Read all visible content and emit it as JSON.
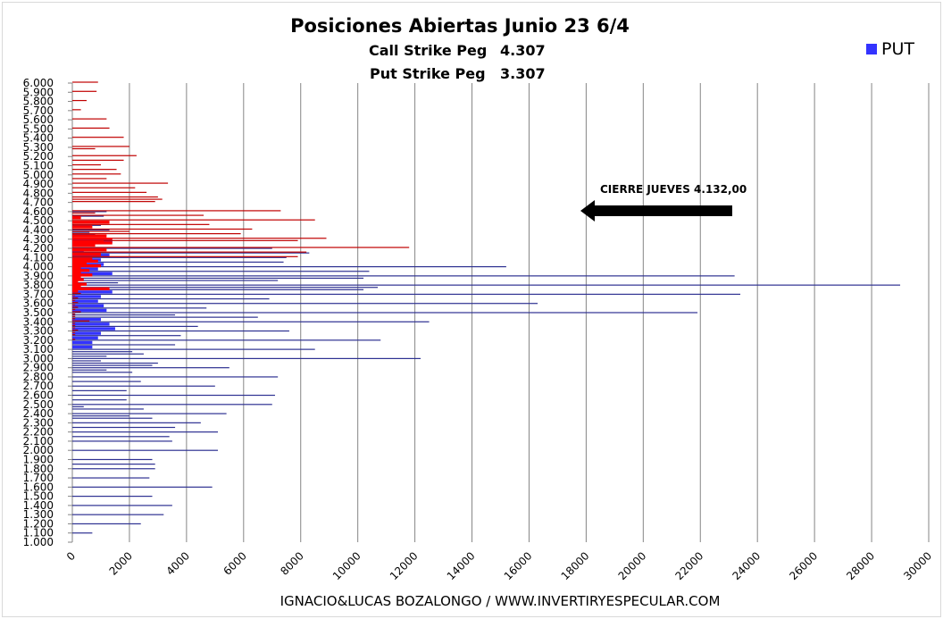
{
  "chart_data": {
    "type": "bar",
    "orientation": "horizontal",
    "title": "Posiciones Abiertas Junio 23 6/4",
    "subtitle_lines": [
      {
        "label": "Call Strike Peg",
        "value": "4.307"
      },
      {
        "label": "Put Strike Peg",
        "value": "3.307"
      }
    ],
    "legend": [
      {
        "name": "PUT",
        "color": "#3333ff"
      }
    ],
    "legend_position": "top-right",
    "xlim": [
      0,
      30000
    ],
    "x_ticks": [
      "0",
      "2000",
      "4000",
      "6000",
      "8000",
      "10000",
      "12000",
      "14000",
      "16000",
      "18000",
      "20000",
      "22000",
      "24000",
      "26000",
      "28000",
      "30000"
    ],
    "ylim": [
      1000,
      6000
    ],
    "y_ticks": [
      "6.000",
      "5.900",
      "5.800",
      "5.700",
      "5.600",
      "5.500",
      "5.400",
      "5.300",
      "5.200",
      "5.100",
      "5.000",
      "4.900",
      "4.800",
      "4.700",
      "4.600",
      "4.500",
      "4.400",
      "4.300",
      "4.200",
      "4.100",
      "4.000",
      "3.900",
      "3.800",
      "3.700",
      "3.600",
      "3.500",
      "3.400",
      "3.300",
      "3.200",
      "3.100",
      "3.000",
      "2.900",
      "2.800",
      "2.700",
      "2.600",
      "2.500",
      "2.400",
      "2.300",
      "2.200",
      "2.100",
      "2.000",
      "1.900",
      "1.800",
      "1.700",
      "1.600",
      "1.500",
      "1.400",
      "1.300",
      "1.200",
      "1.100",
      "1.000"
    ],
    "grid": true,
    "series_columns": [
      "strike",
      "call",
      "put"
    ],
    "colors": {
      "call": "#c00000",
      "put": "#2e3192",
      "call_near": "#ff0000",
      "put_near": "#3333ff"
    },
    "rows": [
      [
        6000,
        900,
        0
      ],
      [
        5900,
        850,
        0
      ],
      [
        5800,
        500,
        0
      ],
      [
        5700,
        300,
        0
      ],
      [
        5600,
        1200,
        0
      ],
      [
        5500,
        1300,
        0
      ],
      [
        5400,
        1800,
        0
      ],
      [
        5300,
        2000,
        0
      ],
      [
        5275,
        800,
        0
      ],
      [
        5200,
        2250,
        0
      ],
      [
        5150,
        1800,
        0
      ],
      [
        5100,
        1000,
        0
      ],
      [
        5050,
        1550,
        0
      ],
      [
        5000,
        1700,
        0
      ],
      [
        4950,
        1200,
        0
      ],
      [
        4900,
        3350,
        0
      ],
      [
        4850,
        2200,
        0
      ],
      [
        4800,
        2600,
        0
      ],
      [
        4750,
        3000,
        0
      ],
      [
        4725,
        3150,
        0
      ],
      [
        4700,
        2900,
        0
      ],
      [
        4600,
        7300,
        1200
      ],
      [
        4575,
        800,
        0
      ],
      [
        4550,
        4600,
        1100
      ],
      [
        4525,
        300,
        0
      ],
      [
        4500,
        8500,
        0
      ],
      [
        4475,
        1300,
        0
      ],
      [
        4450,
        4800,
        1000
      ],
      [
        4425,
        700,
        0
      ],
      [
        4400,
        6300,
        1300
      ],
      [
        4375,
        2000,
        600
      ],
      [
        4350,
        5900,
        800
      ],
      [
        4325,
        1200,
        0
      ],
      [
        4300,
        8900,
        1000
      ],
      [
        4290,
        1400,
        0
      ],
      [
        4275,
        7900,
        1400
      ],
      [
        4260,
        1100,
        0
      ],
      [
        4250,
        1400,
        700
      ],
      [
        4225,
        800,
        0
      ],
      [
        4200,
        11800,
        7000
      ],
      [
        4175,
        1200,
        400
      ],
      [
        4150,
        8200,
        8300
      ],
      [
        4125,
        1000,
        1300
      ],
      [
        4100,
        7900,
        7500
      ],
      [
        4075,
        700,
        1000
      ],
      [
        4050,
        900,
        7400
      ],
      [
        4025,
        500,
        1100
      ],
      [
        4000,
        1000,
        15200
      ],
      [
        3975,
        300,
        900
      ],
      [
        3950,
        600,
        10400
      ],
      [
        3925,
        300,
        1400
      ],
      [
        3900,
        700,
        23200
      ],
      [
        3875,
        300,
        10200
      ],
      [
        3850,
        400,
        7200
      ],
      [
        3825,
        200,
        1600
      ],
      [
        3800,
        500,
        29000
      ],
      [
        3775,
        300,
        10700
      ],
      [
        3750,
        1300,
        10200
      ],
      [
        3725,
        200,
        1400
      ],
      [
        3700,
        300,
        23400
      ],
      [
        3675,
        100,
        1000
      ],
      [
        3650,
        200,
        6900
      ],
      [
        3625,
        100,
        900
      ],
      [
        3600,
        200,
        16300
      ],
      [
        3575,
        100,
        1100
      ],
      [
        3550,
        200,
        4700
      ],
      [
        3525,
        100,
        1200
      ],
      [
        3500,
        300,
        21900
      ],
      [
        3475,
        100,
        3600
      ],
      [
        3450,
        100,
        6500
      ],
      [
        3425,
        100,
        1000
      ],
      [
        3400,
        600,
        12500
      ],
      [
        3375,
        100,
        1300
      ],
      [
        3350,
        100,
        4400
      ],
      [
        3325,
        100,
        1500
      ],
      [
        3300,
        200,
        7600
      ],
      [
        3275,
        100,
        1000
      ],
      [
        3250,
        100,
        3800
      ],
      [
        3225,
        0,
        900
      ],
      [
        3200,
        100,
        10800
      ],
      [
        3175,
        0,
        700
      ],
      [
        3150,
        0,
        3600
      ],
      [
        3125,
        0,
        700
      ],
      [
        3100,
        0,
        8500
      ],
      [
        3075,
        0,
        2100
      ],
      [
        3050,
        0,
        2500
      ],
      [
        3025,
        0,
        1200
      ],
      [
        3000,
        0,
        12200
      ],
      [
        2975,
        0,
        1000
      ],
      [
        2950,
        0,
        3000
      ],
      [
        2925,
        0,
        2800
      ],
      [
        2900,
        0,
        5500
      ],
      [
        2875,
        0,
        1200
      ],
      [
        2850,
        0,
        2100
      ],
      [
        2800,
        0,
        7200
      ],
      [
        2750,
        0,
        2400
      ],
      [
        2700,
        0,
        5000
      ],
      [
        2650,
        0,
        1900
      ],
      [
        2600,
        0,
        7100
      ],
      [
        2550,
        0,
        1900
      ],
      [
        2500,
        0,
        7000
      ],
      [
        2475,
        0,
        400
      ],
      [
        2450,
        0,
        2500
      ],
      [
        2400,
        0,
        5400
      ],
      [
        2375,
        0,
        2000
      ],
      [
        2350,
        0,
        2800
      ],
      [
        2300,
        0,
        4500
      ],
      [
        2250,
        0,
        3600
      ],
      [
        2200,
        0,
        5100
      ],
      [
        2150,
        0,
        3400
      ],
      [
        2100,
        0,
        3500
      ],
      [
        2000,
        0,
        5100
      ],
      [
        1900,
        0,
        2800
      ],
      [
        1850,
        0,
        2900
      ],
      [
        1800,
        0,
        2900
      ],
      [
        1700,
        0,
        2700
      ],
      [
        1600,
        0,
        4900
      ],
      [
        1500,
        0,
        2800
      ],
      [
        1400,
        0,
        3500
      ],
      [
        1300,
        0,
        3200
      ],
      [
        1200,
        0,
        2400
      ],
      [
        1100,
        0,
        700
      ]
    ],
    "annotation": {
      "text": "CIERRE JUEVES 4.132,00",
      "arrow": "left"
    }
  },
  "footer": "IGNACIO&LUCAS BOZALONGO / WWW.INVERTIRYESPECULAR.COM"
}
